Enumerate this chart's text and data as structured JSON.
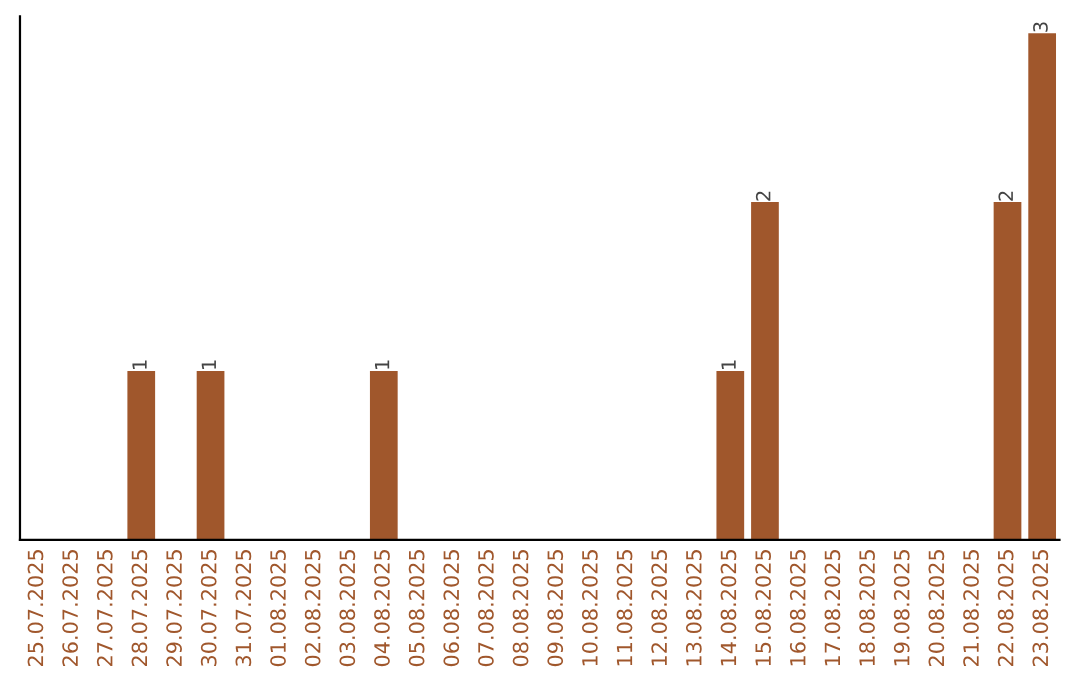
{
  "chart_data": {
    "type": "bar",
    "categories": [
      "25.07.2025",
      "26.07.2025",
      "27.07.2025",
      "28.07.2025",
      "29.07.2025",
      "30.07.2025",
      "31.07.2025",
      "01.08.2025",
      "02.08.2025",
      "03.08.2025",
      "04.08.2025",
      "05.08.2025",
      "06.08.2025",
      "07.08.2025",
      "08.08.2025",
      "09.08.2025",
      "10.08.2025",
      "11.08.2025",
      "12.08.2025",
      "13.08.2025",
      "14.08.2025",
      "15.08.2025",
      "16.08.2025",
      "17.08.2025",
      "18.08.2025",
      "19.08.2025",
      "20.08.2025",
      "21.08.2025",
      "22.08.2025",
      "23.08.2025"
    ],
    "values": [
      0,
      0,
      0,
      1,
      0,
      1,
      0,
      0,
      0,
      0,
      1,
      0,
      0,
      0,
      0,
      0,
      0,
      0,
      0,
      0,
      1,
      2,
      0,
      0,
      0,
      0,
      0,
      0,
      2,
      3
    ],
    "value_labels": [
      null,
      null,
      null,
      "1",
      null,
      "1",
      null,
      null,
      null,
      null,
      "1",
      null,
      null,
      null,
      null,
      null,
      null,
      null,
      null,
      null,
      "1",
      "2",
      null,
      null,
      null,
      null,
      null,
      null,
      "2",
      "3"
    ],
    "color": "#a0572c",
    "ylim": [
      0,
      3.1
    ],
    "tick_labels": "x",
    "grid": false
  }
}
